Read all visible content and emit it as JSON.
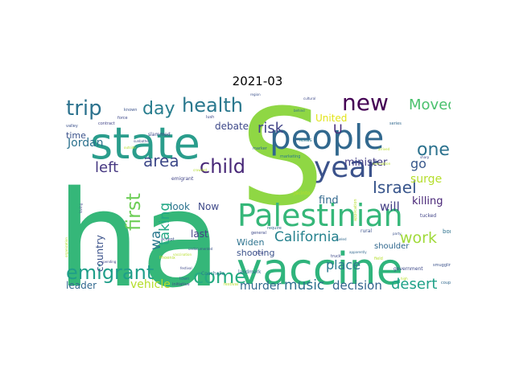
{
  "title": "2021-03",
  "chart_data": {
    "type": "wordcloud",
    "title": "2021-03",
    "colormap": "viridis",
    "background": "#ffffff",
    "words": [
      {
        "text": "ha",
        "weight": 100,
        "color": "#35b779"
      },
      {
        "text": "S",
        "weight": 86,
        "color": "#8fd744"
      },
      {
        "text": "vaccine",
        "weight": 45,
        "color": "#2fb47c"
      },
      {
        "text": "state",
        "weight": 43,
        "color": "#2a9d8c"
      },
      {
        "text": "people",
        "weight": 36,
        "color": "#31688e"
      },
      {
        "text": "Palestinian",
        "weight": 33,
        "color": "#35b779"
      },
      {
        "text": "year",
        "weight": 30,
        "color": "#3b528b"
      },
      {
        "text": "new",
        "weight": 23,
        "color": "#440154"
      },
      {
        "text": "health",
        "weight": 20,
        "color": "#2a788e"
      },
      {
        "text": "trip",
        "weight": 20,
        "color": "#2c728e"
      },
      {
        "text": "day",
        "weight": 19,
        "color": "#287d8e"
      },
      {
        "text": "child",
        "weight": 19,
        "color": "#482878"
      },
      {
        "text": "first",
        "weight": 19,
        "color": "#6ece58"
      },
      {
        "text": "emigrant",
        "weight": 18,
        "color": "#1f9e89"
      },
      {
        "text": "come",
        "weight": 18,
        "color": "#25ab82"
      },
      {
        "text": "Israel",
        "weight": 18,
        "color": "#39568c"
      },
      {
        "text": "area",
        "weight": 17,
        "color": "#3e4989"
      },
      {
        "text": "one",
        "weight": 17,
        "color": "#2c728e"
      },
      {
        "text": "Moved",
        "weight": 16,
        "color": "#4ac16d"
      },
      {
        "text": "left",
        "weight": 15,
        "color": "#453781"
      },
      {
        "text": "California",
        "weight": 15,
        "color": "#26828e"
      },
      {
        "text": "work",
        "weight": 15,
        "color": "#a0da39"
      },
      {
        "text": "risk",
        "weight": 14,
        "color": "#414487"
      },
      {
        "text": "taking",
        "weight": 14,
        "color": "#22a884"
      },
      {
        "text": "desert",
        "weight": 14,
        "color": "#1fa188"
      },
      {
        "text": "music",
        "weight": 13,
        "color": "#2d708e"
      },
      {
        "text": "wa",
        "weight": 13,
        "color": "#2a788e"
      },
      {
        "text": "decision",
        "weight": 12,
        "color": "#33638d"
      },
      {
        "text": "murder",
        "weight": 11,
        "color": "#31688e"
      },
      {
        "text": "go",
        "weight": 11,
        "color": "#38588c"
      },
      {
        "text": "place",
        "weight": 11,
        "color": "#2a788e"
      },
      {
        "text": "vehicle",
        "weight": 11,
        "color": "#b5de2b"
      },
      {
        "text": "U",
        "weight": 11,
        "color": "#472d7b"
      },
      {
        "text": "will",
        "weight": 10,
        "color": "#433e85"
      },
      {
        "text": "killing",
        "weight": 10,
        "color": "#482677"
      },
      {
        "text": "surge",
        "weight": 10,
        "color": "#b5de2b"
      },
      {
        "text": "Jordan",
        "weight": 9,
        "color": "#2c728e"
      },
      {
        "text": "find",
        "weight": 9,
        "color": "#31688e"
      },
      {
        "text": "United",
        "weight": 9,
        "color": "#e2e418"
      },
      {
        "text": "minister",
        "weight": 9,
        "color": "#433e85"
      },
      {
        "text": "debate",
        "weight": 8,
        "color": "#3e4989"
      },
      {
        "text": "time",
        "weight": 8,
        "color": "#3b528b"
      },
      {
        "text": "look",
        "weight": 8,
        "color": "#2c728e"
      },
      {
        "text": "Now",
        "weight": 8,
        "color": "#3e4989"
      },
      {
        "text": "last",
        "weight": 8,
        "color": "#433e85"
      },
      {
        "text": "Widen",
        "weight": 8,
        "color": "#2c728e"
      },
      {
        "text": "shooting",
        "weight": 8,
        "color": "#3b528b"
      },
      {
        "text": "leader",
        "weight": 8,
        "color": "#31688e"
      },
      {
        "text": "country",
        "weight": 8,
        "color": "#3b528b"
      },
      {
        "text": "shoulder",
        "weight": 7,
        "color": "#31688e"
      },
      {
        "text": "border",
        "weight": 6,
        "color": "#2c728e"
      },
      {
        "text": "emigrant",
        "weight": 5,
        "color": "#414487"
      },
      {
        "text": "slammed",
        "weight": 5,
        "color": "#3e4989"
      },
      {
        "text": "Coachella",
        "weight": 5,
        "color": "#2a788e"
      },
      {
        "text": "landmark",
        "weight": 5,
        "color": "#31688e"
      },
      {
        "text": "Phoenix",
        "weight": 5,
        "color": "#b5de2b"
      },
      {
        "text": "government",
        "weight": 5,
        "color": "#3e4989"
      },
      {
        "text": "Jacinto",
        "weight": 5,
        "color": "#b5de2b"
      },
      {
        "text": "Texas",
        "weight": 5,
        "color": "#2a788e"
      },
      {
        "text": "rural",
        "weight": 5,
        "color": "#3b528b"
      },
      {
        "text": "tucked",
        "weight": 5,
        "color": "#414487"
      },
      {
        "text": "lush",
        "weight": 4,
        "color": "#3e4989"
      },
      {
        "text": "marketing",
        "weight": 4,
        "color": "#2a788e"
      },
      {
        "text": "series",
        "weight": 4,
        "color": "#31688e"
      },
      {
        "text": "known",
        "weight": 4,
        "color": "#3b528b"
      },
      {
        "text": "force",
        "weight": 4,
        "color": "#3e4989"
      },
      {
        "text": "contract",
        "weight": 4,
        "color": "#414487"
      },
      {
        "text": "valley",
        "weight": 4,
        "color": "#3b528b"
      },
      {
        "text": "marker",
        "weight": 4,
        "color": "#31688e"
      },
      {
        "text": "general",
        "weight": 4,
        "color": "#3e4989"
      },
      {
        "text": "accept",
        "weight": 4,
        "color": "#3b528b"
      },
      {
        "text": "town",
        "weight": 4,
        "color": "#31688e"
      },
      {
        "text": "festival",
        "weight": 4,
        "color": "#b5de2b"
      },
      {
        "text": "initiative",
        "weight": 4,
        "color": "#3e4989"
      },
      {
        "text": "couple",
        "weight": 4,
        "color": "#31688e"
      },
      {
        "text": "smuggling",
        "weight": 4,
        "color": "#3b528b"
      },
      {
        "text": "field",
        "weight": 4,
        "color": "#b5de2b"
      },
      {
        "text": "truck",
        "weight": 4,
        "color": "#3e4989"
      },
      {
        "text": "require",
        "weight": 4,
        "color": "#31688e"
      },
      {
        "text": "application",
        "weight": 4,
        "color": "#b5de2b"
      },
      {
        "text": "cultural",
        "weight": 3,
        "color": "#3e4989"
      },
      {
        "text": "fueled",
        "weight": 3,
        "color": "#31688e"
      },
      {
        "text": "arrived",
        "weight": 3,
        "color": "#b5de2b"
      },
      {
        "text": "Arab",
        "weight": 3,
        "color": "#414487"
      },
      {
        "text": "party",
        "weight": 3,
        "color": "#3b528b"
      },
      {
        "text": "crowded",
        "weight": 3,
        "color": "#b5de2b"
      },
      {
        "text": "sunbathe",
        "weight": 3,
        "color": "#3e4989"
      },
      {
        "text": "outside",
        "weight": 3,
        "color": "#b5de2b"
      },
      {
        "text": "organization",
        "weight": 3,
        "color": "#b5de2b"
      },
      {
        "text": "loving",
        "weight": 3,
        "color": "#3e4989"
      },
      {
        "text": "high",
        "weight": 3,
        "color": "#b5de2b"
      },
      {
        "text": "behind",
        "weight": 3,
        "color": "#31688e"
      },
      {
        "text": "region",
        "weight": 3,
        "color": "#3b528b"
      },
      {
        "text": "apparently",
        "weight": 3,
        "color": "#31688e"
      },
      {
        "text": "festival",
        "weight": 3,
        "color": "#3e4989"
      },
      {
        "text": "undocumented",
        "weight": 3,
        "color": "#3b528b"
      },
      {
        "text": "spending",
        "weight": 3,
        "color": "#414487"
      },
      {
        "text": "vaccination",
        "weight": 3,
        "color": "#b5de2b"
      },
      {
        "text": "sharp",
        "weight": 3,
        "color": "#3e4989"
      },
      {
        "text": "evacuation",
        "weight": 3,
        "color": "#b5de2b"
      }
    ]
  }
}
